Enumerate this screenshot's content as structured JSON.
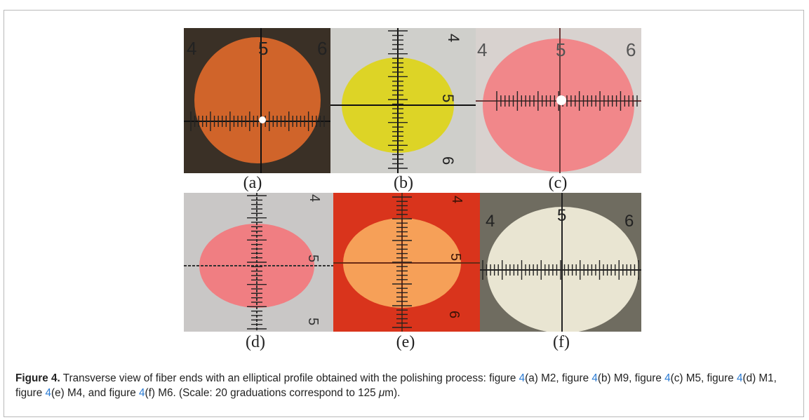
{
  "figure": {
    "panels": [
      {
        "label": "(a)",
        "sample": "M2",
        "fill": "#d0642a",
        "bg": "#3a3026",
        "ticks": [
          "4",
          "5",
          "6"
        ]
      },
      {
        "label": "(b)",
        "sample": "M9",
        "fill": "#ddd426",
        "bg": "#cfcfcb",
        "ticks": [
          "4",
          "5",
          "6"
        ]
      },
      {
        "label": "(c)",
        "sample": "M5",
        "fill": "#f1878a",
        "bg": "#d8d2cf",
        "ticks": [
          "4",
          "5",
          "6"
        ]
      },
      {
        "label": "(d)",
        "sample": "M1",
        "fill": "#f07e82",
        "bg": "#c9c7c6",
        "ticks": [
          "4",
          "5",
          "5"
        ]
      },
      {
        "label": "(e)",
        "sample": "M4",
        "fill": "#f6a058",
        "bg": "#d9341c",
        "ticks": [
          "4",
          "5",
          "6"
        ]
      },
      {
        "label": "(f)",
        "sample": "M6",
        "fill": "#e9e5d2",
        "bg": "#6f6c60",
        "ticks": [
          "4",
          "5",
          "6"
        ]
      }
    ],
    "caption": {
      "lead": "Figure 4.",
      "parts": [
        " Transverse view of fiber ends with an elliptical profile obtained with the polishing process: figure ",
        "4",
        "(a) M2, figure ",
        "4",
        "(b) M9, figure ",
        "4",
        "(c) M5, figure ",
        "4",
        "(d) M1, figure ",
        "4",
        "(e) M4, and figure ",
        "4",
        "(f) M6. (Scale: 20 graduations correspond to 125 ",
        "μ",
        "m)."
      ]
    }
  }
}
